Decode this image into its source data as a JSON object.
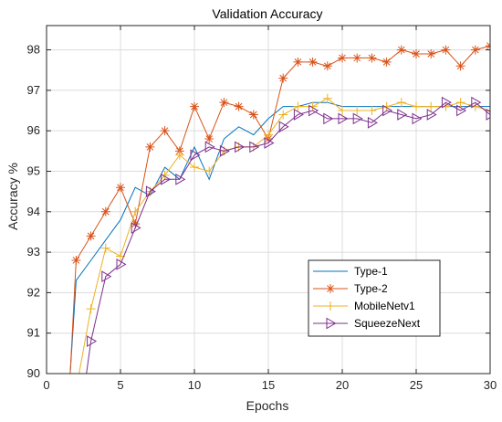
{
  "chart_data": {
    "type": "line",
    "title": "Validation Accuracy",
    "xlabel": "Epochs",
    "ylabel": "Accuracy %",
    "xlim": [
      0,
      30
    ],
    "ylim": [
      90,
      98.6
    ],
    "x_ticks": [
      0,
      5,
      10,
      15,
      20,
      25,
      30
    ],
    "y_ticks": [
      90,
      91,
      92,
      93,
      94,
      95,
      96,
      97,
      98
    ],
    "grid": true,
    "legend_position": "bottom-right",
    "series": [
      {
        "name": "Type-1",
        "color": "#0072BD",
        "marker": "none",
        "x": [
          1.6,
          2,
          3,
          4,
          5,
          6,
          7,
          8,
          9,
          10,
          11,
          12,
          13,
          14,
          15,
          16,
          17,
          18,
          19,
          20,
          21,
          22,
          23,
          24,
          25,
          26,
          27,
          28,
          29,
          30
        ],
        "y": [
          90,
          92.3,
          92.8,
          93.3,
          93.8,
          94.6,
          94.4,
          95.1,
          94.8,
          95.6,
          94.8,
          95.8,
          96.1,
          95.9,
          96.3,
          96.6,
          96.6,
          96.7,
          96.7,
          96.6,
          96.6,
          96.6,
          96.6,
          96.6,
          96.6,
          96.6,
          96.6,
          96.6,
          96.6,
          96.6
        ]
      },
      {
        "name": "Type-2",
        "color": "#D95319",
        "marker": "asterisk",
        "x": [
          1.6,
          2,
          3,
          4,
          5,
          6,
          7,
          8,
          9,
          10,
          11,
          12,
          13,
          14,
          15,
          16,
          17,
          18,
          19,
          20,
          21,
          22,
          23,
          24,
          25,
          26,
          27,
          28,
          29,
          30
        ],
        "y": [
          90,
          92.8,
          93.4,
          94.0,
          94.6,
          93.7,
          95.6,
          96.0,
          95.5,
          96.6,
          95.8,
          96.7,
          96.6,
          96.4,
          95.8,
          97.3,
          97.7,
          97.7,
          97.6,
          97.8,
          97.8,
          97.8,
          97.7,
          98.0,
          97.9,
          97.9,
          98.0,
          97.6,
          98.0,
          98.1
        ]
      },
      {
        "name": "MobileNetv1",
        "color": "#EDB120",
        "marker": "plus",
        "x": [
          2.2,
          3,
          4,
          5,
          6,
          7,
          8,
          9,
          10,
          11,
          12,
          13,
          14,
          15,
          16,
          17,
          18,
          19,
          20,
          21,
          22,
          23,
          24,
          25,
          26,
          27,
          28,
          29,
          30
        ],
        "y": [
          90,
          91.6,
          93.1,
          92.9,
          94.0,
          94.5,
          94.9,
          95.4,
          95.1,
          95.0,
          95.5,
          95.6,
          95.6,
          95.9,
          96.4,
          96.6,
          96.6,
          96.8,
          96.5,
          96.5,
          96.5,
          96.6,
          96.7,
          96.6,
          96.6,
          96.6,
          96.7,
          96.6,
          96.5
        ]
      },
      {
        "name": "SqueezeNext",
        "color": "#7E2F8E",
        "marker": "triangle-right",
        "x": [
          2.7,
          3,
          4,
          5,
          6,
          7,
          8,
          9,
          10,
          11,
          12,
          13,
          14,
          15,
          16,
          17,
          18,
          19,
          20,
          21,
          22,
          23,
          24,
          25,
          26,
          27,
          28,
          29,
          30
        ],
        "y": [
          90,
          90.8,
          92.4,
          92.7,
          93.6,
          94.5,
          94.8,
          94.8,
          95.4,
          95.6,
          95.5,
          95.6,
          95.6,
          95.7,
          96.1,
          96.4,
          96.5,
          96.3,
          96.3,
          96.3,
          96.2,
          96.5,
          96.4,
          96.3,
          96.4,
          96.7,
          96.5,
          96.7,
          96.4
        ]
      }
    ]
  }
}
